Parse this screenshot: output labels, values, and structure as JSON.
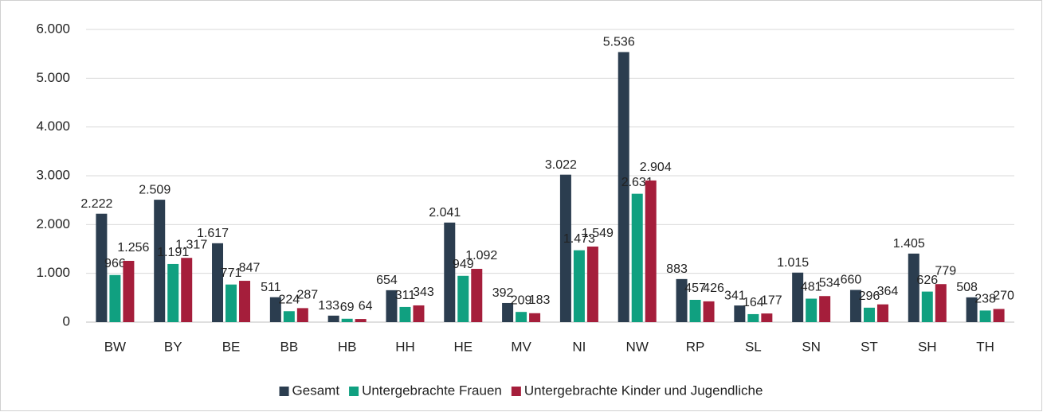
{
  "chart_data": {
    "type": "bar",
    "categories": [
      "BW",
      "BY",
      "BE",
      "BB",
      "HB",
      "HH",
      "HE",
      "MV",
      "NI",
      "NW",
      "RP",
      "SL",
      "SN",
      "ST",
      "SH",
      "TH"
    ],
    "series": [
      {
        "name": "Gesamt",
        "color": "#2b3d4f",
        "values": [
          2222,
          2509,
          1617,
          511,
          133,
          654,
          2041,
          392,
          3022,
          5536,
          883,
          341,
          1015,
          660,
          1405,
          508
        ],
        "value_labels": [
          "2.222",
          "2.509",
          "1.617",
          "511",
          "133",
          "654",
          "2.041",
          "392",
          "3.022",
          "5.536",
          "883",
          "341",
          "1.015",
          "660",
          "1.405",
          "508"
        ]
      },
      {
        "name": "Untergebrachte Frauen",
        "color": "#10a080",
        "values": [
          966,
          1191,
          771,
          224,
          69,
          311,
          949,
          209,
          1473,
          2631,
          457,
          164,
          481,
          296,
          626,
          238
        ],
        "value_labels": [
          "966",
          "1.191",
          "771",
          "224",
          "69",
          "311",
          "949",
          "209",
          "1.473",
          "2.631",
          "457",
          "164",
          "481",
          "296",
          "626",
          "238"
        ]
      },
      {
        "name": "Untergebrachte Kinder und Jugendliche",
        "color": "#a51e3b",
        "values": [
          1256,
          1317,
          847,
          287,
          64,
          343,
          1092,
          183,
          1549,
          2904,
          426,
          177,
          534,
          364,
          779,
          270
        ],
        "value_labels": [
          "1.256",
          "1.317",
          "847",
          "287",
          "64",
          "343",
          "1.092",
          "183",
          "1.549",
          "2.904",
          "426",
          "177",
          "534",
          "364",
          "779",
          "270"
        ]
      }
    ],
    "ylim": [
      0,
      6000
    ],
    "yticks": [
      0,
      {
        "value": 1000,
        "label": "1.000"
      },
      {
        "value": 2000,
        "label": "2.000"
      },
      {
        "value": 3000,
        "label": "3.000"
      },
      {
        "value": 4000,
        "label": "4.000"
      },
      {
        "value": 5000,
        "label": "5.000"
      },
      {
        "value": 6000,
        "label": "6.000"
      }
    ],
    "grid": true,
    "legend": "bottom"
  }
}
